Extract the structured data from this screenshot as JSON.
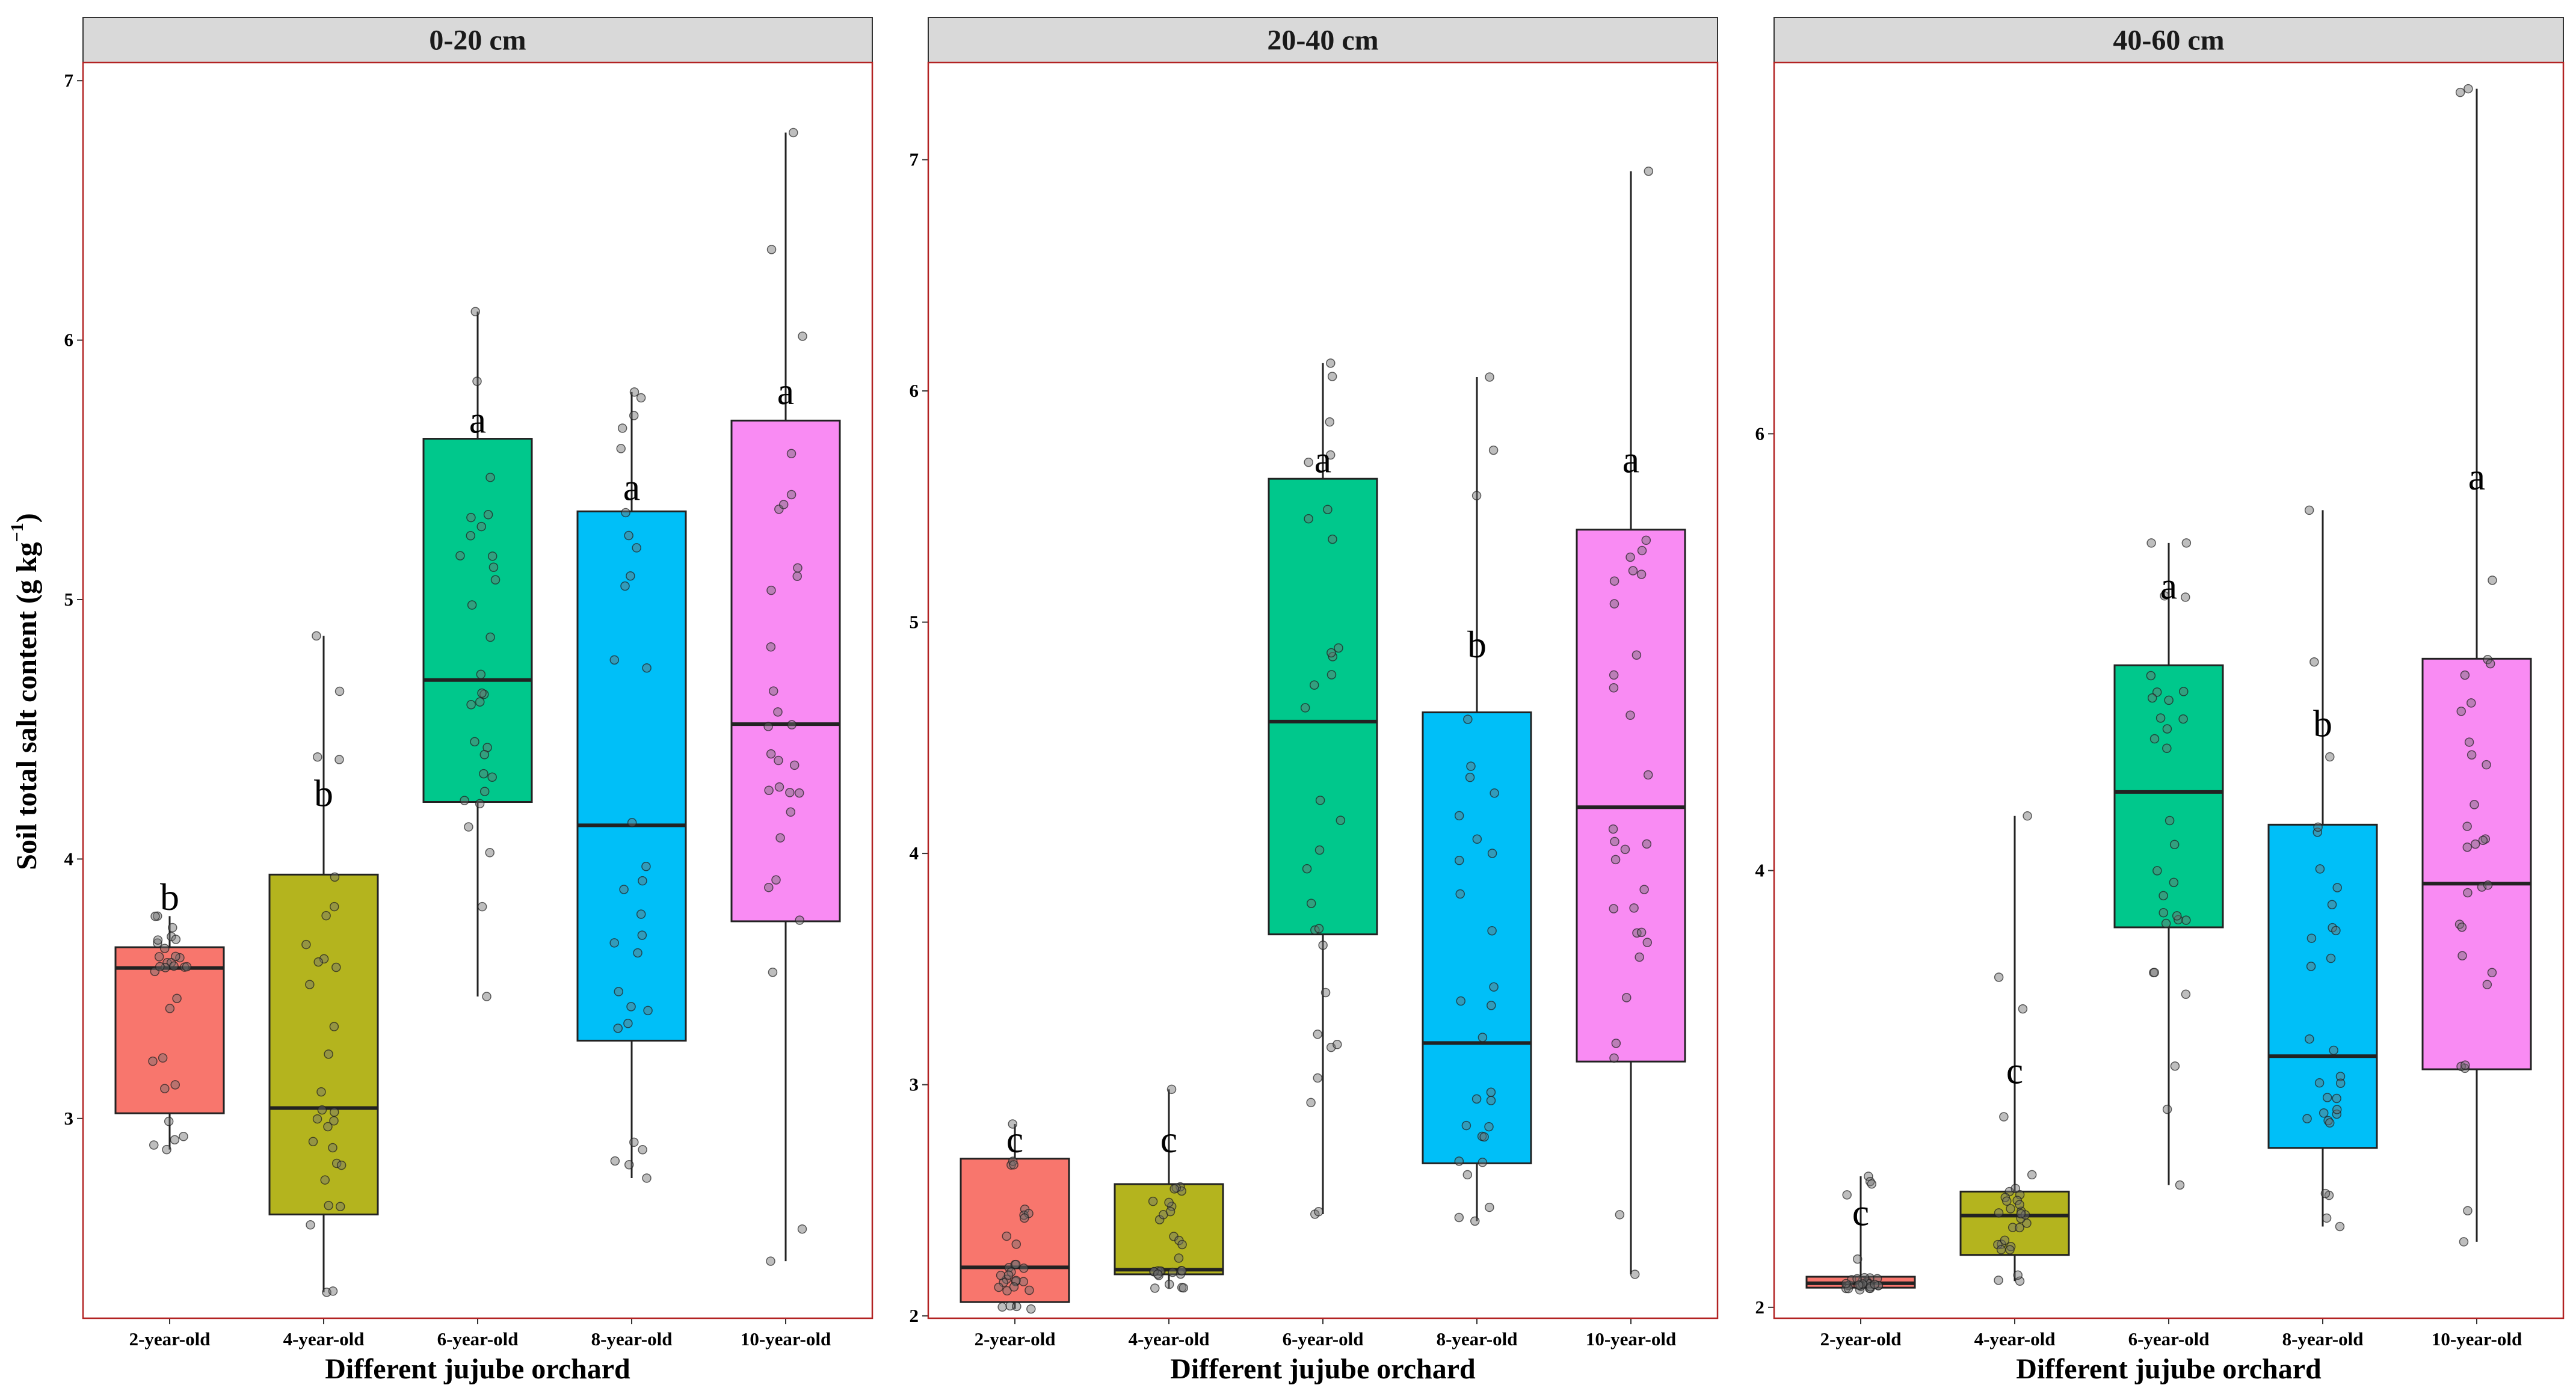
{
  "chart_data": {
    "type": "boxplot",
    "ylabel": "Soil total salt content",
    "ylabel_unit": "(g kg",
    "ylabel_exp": "−1",
    "ylabel_close": ")",
    "xlabel": "Different jujube orchard",
    "categories": [
      "2-year-old",
      "4-year-old",
      "6-year-old",
      "8-year-old",
      "10-year-old"
    ],
    "colors": [
      "#F8766D",
      "#B4B41E",
      "#00C88C",
      "#00BFF8",
      "#F98BF3"
    ],
    "panels": [
      {
        "title": "0-20 cm",
        "ylim": [
          2.23,
          7.07
        ],
        "yticks": [
          3,
          4,
          5,
          6,
          7
        ],
        "boxes": [
          {
            "category": "2-year-old",
            "min": 2.88,
            "q1": 3.02,
            "median": 3.58,
            "q3": 3.66,
            "max": 3.78,
            "letter": "b",
            "letter_y": 3.85
          },
          {
            "category": "4-year-old",
            "min": 2.33,
            "q1": 2.63,
            "median": 3.04,
            "q3": 3.94,
            "max": 4.86,
            "letter": "b",
            "letter_y": 4.25
          },
          {
            "category": "6-year-old",
            "min": 3.47,
            "q1": 4.22,
            "median": 4.69,
            "q3": 5.62,
            "max": 6.11,
            "letter": "a",
            "letter_y": 5.69
          },
          {
            "category": "8-year-old",
            "min": 2.77,
            "q1": 3.3,
            "median": 4.13,
            "q3": 5.34,
            "max": 5.8,
            "letter": "a",
            "letter_y": 5.43
          },
          {
            "category": "10-year-old",
            "min": 2.45,
            "q1": 3.76,
            "median": 4.52,
            "q3": 5.69,
            "max": 6.8,
            "letter": "a",
            "letter_y": 5.8
          }
        ]
      },
      {
        "title": "20-40 cm",
        "ylim": [
          1.99,
          7.42
        ],
        "yticks": [
          2,
          3,
          4,
          5,
          6,
          7
        ],
        "boxes": [
          {
            "category": "2-year-old",
            "min": 2.03,
            "q1": 2.06,
            "median": 2.21,
            "q3": 2.68,
            "max": 2.83,
            "letter": "c",
            "letter_y": 2.76
          },
          {
            "category": "4-year-old",
            "min": 2.12,
            "q1": 2.18,
            "median": 2.2,
            "q3": 2.57,
            "max": 2.98,
            "letter": "c",
            "letter_y": 2.76
          },
          {
            "category": "6-year-old",
            "min": 2.44,
            "q1": 3.65,
            "median": 4.57,
            "q3": 5.62,
            "max": 6.12,
            "letter": "a",
            "letter_y": 5.7
          },
          {
            "category": "8-year-old",
            "min": 2.41,
            "q1": 2.66,
            "median": 3.18,
            "q3": 4.61,
            "max": 6.06,
            "letter": "b",
            "letter_y": 4.9
          },
          {
            "category": "10-year-old",
            "min": 2.18,
            "q1": 3.1,
            "median": 4.2,
            "q3": 5.4,
            "max": 6.95,
            "letter": "a",
            "letter_y": 5.7
          }
        ]
      },
      {
        "title": "40-60 cm",
        "ylim": [
          1.95,
          7.7
        ],
        "yticks": [
          2,
          4,
          6
        ],
        "boxes": [
          {
            "category": "2-year-old",
            "min": 2.08,
            "q1": 2.09,
            "median": 2.11,
            "q3": 2.14,
            "max": 2.6,
            "letter": "c",
            "letter_y": 2.43
          },
          {
            "category": "4-year-old",
            "min": 2.12,
            "q1": 2.24,
            "median": 2.42,
            "q3": 2.53,
            "max": 4.25,
            "letter": "c",
            "letter_y": 3.08
          },
          {
            "category": "6-year-old",
            "min": 2.56,
            "q1": 3.74,
            "median": 4.36,
            "q3": 4.94,
            "max": 5.5,
            "letter": "a",
            "letter_y": 5.3
          },
          {
            "category": "8-year-old",
            "min": 2.37,
            "q1": 2.73,
            "median": 3.15,
            "q3": 4.21,
            "max": 5.65,
            "letter": "b",
            "letter_y": 4.67
          },
          {
            "category": "10-year-old",
            "min": 2.3,
            "q1": 3.09,
            "median": 3.94,
            "q3": 4.97,
            "max": 7.58,
            "letter": "a",
            "letter_y": 5.8
          }
        ]
      }
    ]
  }
}
